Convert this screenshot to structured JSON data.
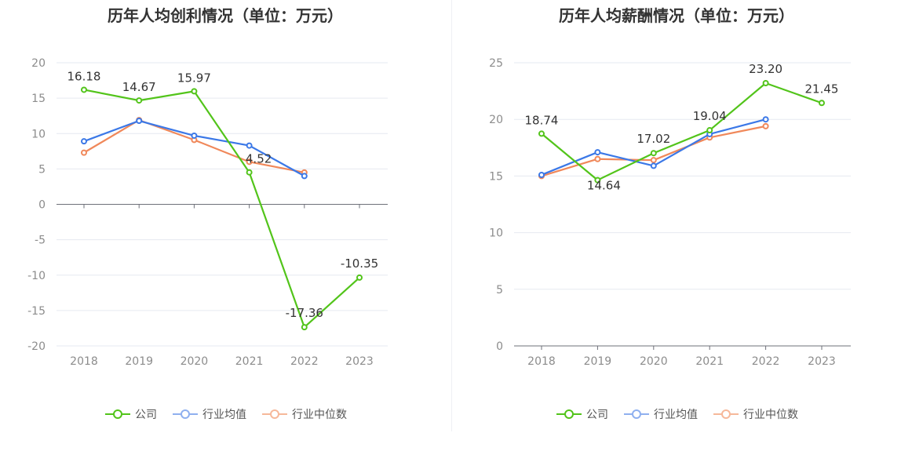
{
  "colors": {
    "company": "#52c41a",
    "industry_avg": "#3b78e7",
    "industry_median": "#f0885a",
    "grid": "#e6e9f0",
    "axis": "#6e7079",
    "tick_text": "#8c8c8c",
    "label_text": "#333333"
  },
  "legend": {
    "company": "公司",
    "industry_avg": "行业均值",
    "industry_median": "行业中位数"
  },
  "chart_data": [
    {
      "type": "line",
      "title": "历年人均创利情况（单位：万元）",
      "categories": [
        "2018",
        "2019",
        "2020",
        "2021",
        "2022",
        "2023"
      ],
      "y_ticks": [
        "20",
        "15",
        "10",
        "5",
        "0",
        "-5",
        "-10",
        "-15",
        "-20"
      ],
      "ylim": [
        -20,
        20
      ],
      "grid": true,
      "legend_position": "bottom",
      "series": [
        {
          "name": "公司",
          "key": "company",
          "values": [
            16.18,
            14.67,
            15.97,
            4.52,
            -17.36,
            -10.35
          ],
          "labels": [
            "16.18",
            "14.67",
            "15.97",
            "4.52",
            "-17.36",
            "-10.35"
          ]
        },
        {
          "name": "行业均值",
          "key": "industry_avg",
          "values": [
            8.9,
            11.8,
            9.7,
            8.3,
            4.0,
            null
          ]
        },
        {
          "name": "行业中位数",
          "key": "industry_median",
          "values": [
            7.3,
            11.9,
            9.1,
            6.0,
            4.5,
            null
          ]
        }
      ]
    },
    {
      "type": "line",
      "title": "历年人均薪酬情况（单位：万元）",
      "categories": [
        "2018",
        "2019",
        "2020",
        "2021",
        "2022",
        "2023"
      ],
      "y_ticks": [
        "25",
        "20",
        "15",
        "10",
        "5",
        "0"
      ],
      "ylim": [
        0,
        25
      ],
      "grid": true,
      "legend_position": "bottom",
      "series": [
        {
          "name": "公司",
          "key": "company",
          "values": [
            18.74,
            14.64,
            17.02,
            19.04,
            23.2,
            21.45
          ],
          "labels": [
            "18.74",
            "14.64",
            "17.02",
            "19.04",
            "23.20",
            "21.45"
          ]
        },
        {
          "name": "行业均值",
          "key": "industry_avg",
          "values": [
            15.1,
            17.1,
            15.9,
            18.7,
            20.0,
            null
          ]
        },
        {
          "name": "行业中位数",
          "key": "industry_median",
          "values": [
            15.0,
            16.5,
            16.4,
            18.4,
            19.4,
            null
          ]
        }
      ]
    }
  ]
}
